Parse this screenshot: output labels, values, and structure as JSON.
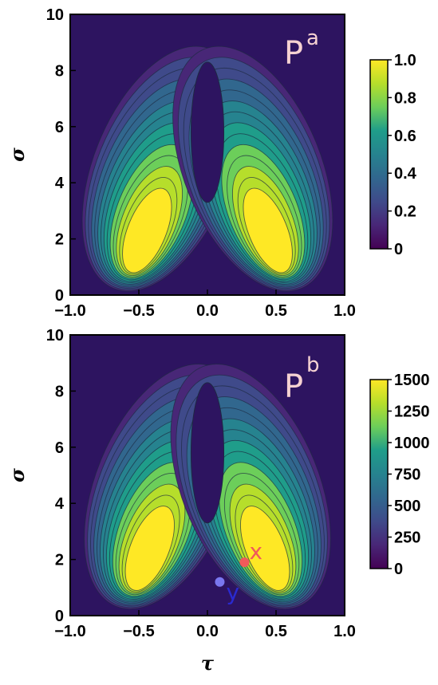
{
  "colors": {
    "dark": "#2d1460",
    "frame": "#000000",
    "panel_label": "#f6d2d2",
    "point_x": "#f05a5a",
    "point_y": "#7a78f0",
    "label_x": "#f05a5a",
    "label_y": "#2a2ad0",
    "viridis": [
      "#440154",
      "#482777",
      "#3f4a8a",
      "#31678e",
      "#26838f",
      "#1f9d8a",
      "#6cce5a",
      "#b6de2b",
      "#fee825"
    ]
  },
  "chart_data": [
    {
      "type": "heatmap",
      "panel_label": "P",
      "panel_superscript": "a",
      "xlabel": "",
      "ylabel": "σ",
      "xlim": [
        -1.0,
        1.0
      ],
      "ylim": [
        0,
        10
      ],
      "x_ticks": [
        "−1.0",
        "−0.5",
        "0.0",
        "0.5",
        "1.0"
      ],
      "y_ticks": [
        "0",
        "2",
        "4",
        "6",
        "8",
        "10"
      ],
      "colorbar": {
        "min": 0,
        "max": 1.0,
        "ticks": [
          "0",
          "0.2",
          "0.4",
          "0.6",
          "0.8",
          "1.0"
        ]
      },
      "lobes": [
        {
          "center_tau": -0.44,
          "center_sigma": 2.3,
          "peak": 1.0
        },
        {
          "center_tau": 0.44,
          "center_sigma": 2.3,
          "peak": 1.0
        }
      ]
    },
    {
      "type": "heatmap",
      "panel_label": "P",
      "panel_superscript": "b",
      "xlabel": "τ",
      "ylabel": "σ",
      "xlim": [
        -1.0,
        1.0
      ],
      "ylim": [
        0,
        10
      ],
      "x_ticks": [
        "−1.0",
        "−0.5",
        "0.0",
        "0.5",
        "1.0"
      ],
      "y_ticks": [
        "0",
        "2",
        "4",
        "6",
        "8",
        "10"
      ],
      "colorbar": {
        "min": 0,
        "max": 1500,
        "ticks": [
          "0",
          "250",
          "500",
          "750",
          "1000",
          "1250",
          "1500"
        ]
      },
      "lobes": [
        {
          "center_tau": -0.42,
          "center_sigma": 2.4,
          "peak": 1300
        },
        {
          "center_tau": 0.42,
          "center_sigma": 2.4,
          "peak": 1300
        }
      ],
      "points": [
        {
          "label": "x",
          "tau": 0.27,
          "sigma": 1.9
        },
        {
          "label": "y",
          "tau": 0.09,
          "sigma": 1.2
        }
      ]
    }
  ]
}
